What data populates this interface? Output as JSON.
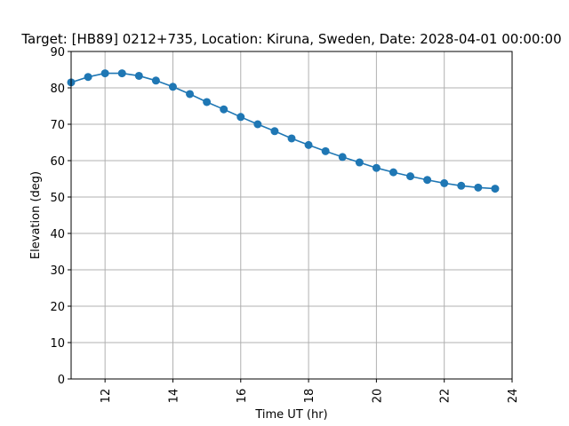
{
  "chart_data": {
    "type": "line",
    "title": "Target: [HB89] 0212+735,  Location: Kiruna, Sweden, Date: 2028-04-01 00:00:00",
    "xlabel": "Time UT (hr)",
    "ylabel": "Elevation (deg)",
    "xlim": [
      11,
      24
    ],
    "ylim": [
      0,
      90
    ],
    "xticks": [
      12,
      14,
      16,
      18,
      20,
      22,
      24
    ],
    "yticks": [
      0,
      10,
      20,
      30,
      40,
      50,
      60,
      70,
      80,
      90
    ],
    "grid": true,
    "marker": "circle",
    "color": "#1f77b4",
    "series": [
      {
        "x": [
          11,
          11.5,
          12,
          12.5,
          13,
          13.5,
          14,
          14.5,
          15,
          15.5,
          16,
          16.5,
          17,
          17.5,
          18,
          18.5,
          19,
          19.5,
          20,
          20.5,
          21,
          21.5,
          22,
          22.5,
          23,
          23.5
        ],
        "y": [
          81.5,
          83.0,
          84.0,
          84.0,
          83.3,
          82.0,
          80.3,
          78.3,
          76.1,
          74.1,
          72.0,
          70.0,
          68.1,
          66.1,
          64.3,
          62.6,
          61.0,
          59.5,
          58.0,
          56.8,
          55.7,
          54.7,
          53.8,
          53.1,
          52.6,
          52.3
        ]
      }
    ]
  }
}
